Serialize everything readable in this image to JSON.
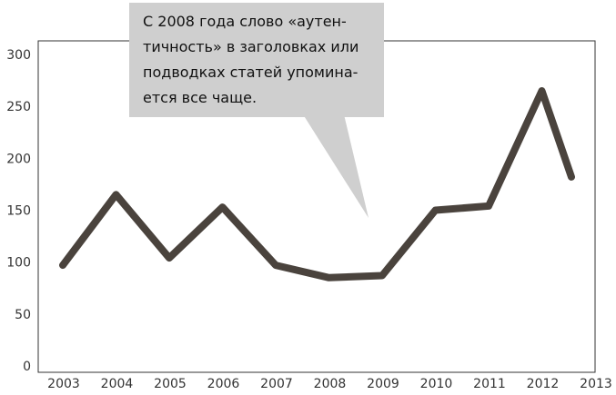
{
  "chart_data": {
    "type": "line",
    "title": "",
    "xlabel": "",
    "ylabel": "",
    "x": [
      "2003",
      "2004",
      "2005",
      "2006",
      "2007",
      "2008",
      "2009",
      "2010",
      "2011",
      "2012",
      "2013"
    ],
    "series": [
      {
        "values": [
          97,
          165,
          104,
          153,
          97,
          85,
          87,
          150,
          154,
          265,
          182
        ]
      }
    ],
    "ylim": [
      0,
      300
    ],
    "yticks": [
      "0",
      "50",
      "100",
      "150",
      "200",
      "250",
      "300"
    ],
    "grid": false,
    "annotation": "С 2008 года слово «аутен-\nтичность» в заголовках или\nподводках статей упомина-\nется все чаще."
  },
  "colors": {
    "line": "#4a433d",
    "callout": "#cfcfcf",
    "axis": "#333333"
  }
}
